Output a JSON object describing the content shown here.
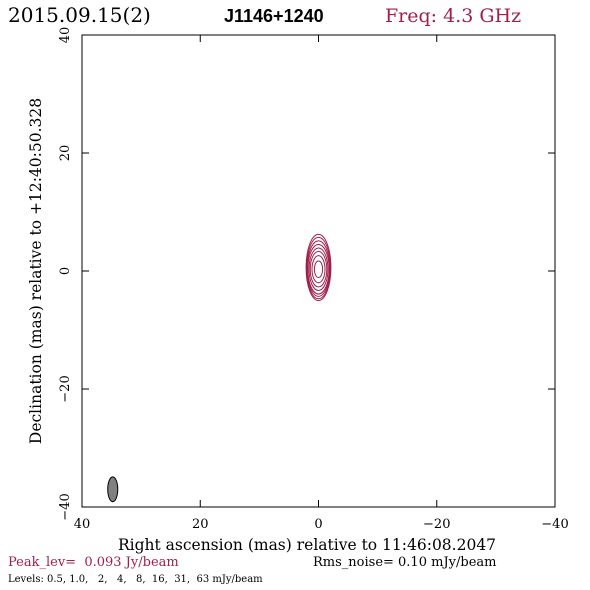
{
  "header": {
    "date": "2015.09.15(2)",
    "source": "J1146+1240",
    "freq": "Freq: 4.3 GHz"
  },
  "chart_data": {
    "type": "contour",
    "xlabel": "Right ascension (mas) relative to 11:46:08.2047",
    "ylabel": "Declination (mas) relative to +12:40:50.328",
    "xlim": [
      40,
      -40
    ],
    "ylim": [
      -40,
      40
    ],
    "x_ticks": [
      40,
      20,
      0,
      -20,
      -40
    ],
    "y_ticks": [
      -40,
      -20,
      0,
      20,
      40
    ],
    "x_tick_labels": [
      "40",
      "20",
      "0",
      "−20",
      "−40"
    ],
    "y_tick_labels": [
      "−40",
      "−20",
      "0",
      "20",
      "40"
    ],
    "contour_color": "#a0204a",
    "contours": [
      {
        "cx": 0.0,
        "cy": 0.6,
        "rx": 2.1,
        "ry": 5.6
      },
      {
        "cx": 0.0,
        "cy": 0.5,
        "rx": 2.0,
        "ry": 5.2
      },
      {
        "cx": 0.0,
        "cy": 0.4,
        "rx": 1.9,
        "ry": 4.7
      },
      {
        "cx": 0.0,
        "cy": 0.3,
        "rx": 1.8,
        "ry": 4.2
      },
      {
        "cx": 0.0,
        "cy": 0.3,
        "rx": 1.6,
        "ry": 3.6
      },
      {
        "cx": 0.0,
        "cy": 0.3,
        "rx": 1.4,
        "ry": 3.0
      },
      {
        "cx": 0.0,
        "cy": 0.3,
        "rx": 1.1,
        "ry": 2.3
      },
      {
        "cx": 0.0,
        "cy": 0.3,
        "rx": 0.7,
        "ry": 1.4
      }
    ],
    "beam": {
      "cx": 34.8,
      "cy": -37.0,
      "rx": 0.85,
      "ry": 2.1,
      "fill": "#808080"
    },
    "peak_text": "Peak_lev=  0.093 Jy/beam",
    "rms_text": "Rms_noise= 0.10 mJy/beam",
    "levels_text": "Levels: 0.5, 1.0,   2,   4,   8,  16,  31,  63 mJy/beam"
  }
}
